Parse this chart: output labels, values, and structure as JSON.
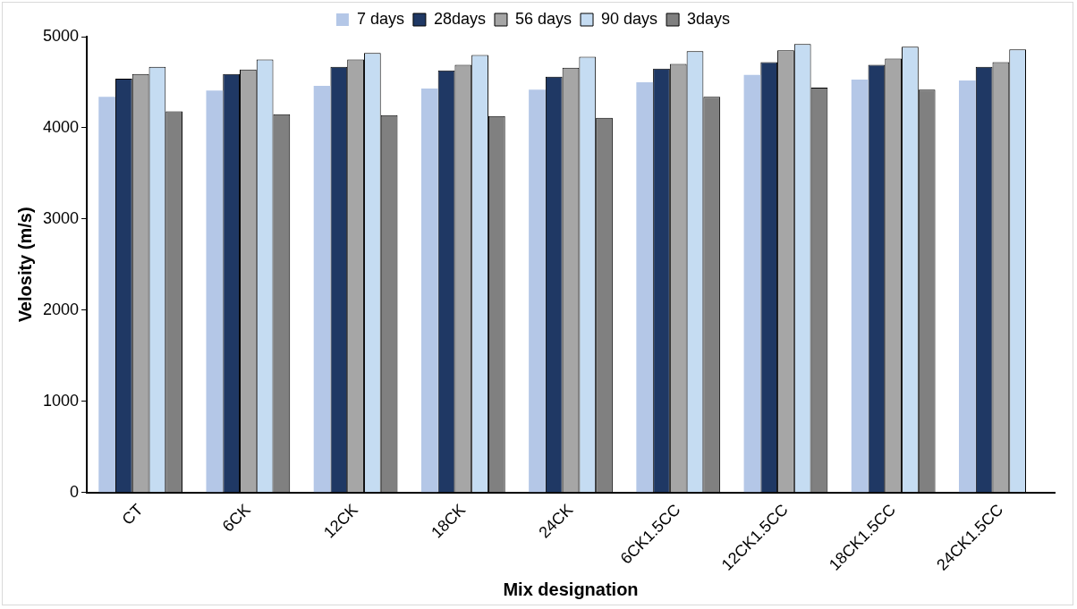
{
  "chart_data": {
    "type": "bar",
    "xlabel": "Mix designation",
    "ylabel": "Velosity (m/s)",
    "categories": [
      "CT",
      "6CK",
      "12CK",
      "18CK",
      "24CK",
      "6CK1.5CC",
      "12CK1.5CC",
      "18CK1.5CC",
      "24CK1.5CC"
    ],
    "series": [
      {
        "name": "7 days",
        "color": "#b4c7e7",
        "values": [
          4340,
          4410,
          4460,
          4430,
          4420,
          4500,
          4580,
          4530,
          4520
        ]
      },
      {
        "name": "28days",
        "color": "#1f3864",
        "values": [
          4540,
          4590,
          4670,
          4630,
          4560,
          4650,
          4720,
          4690,
          4670
        ]
      },
      {
        "name": "56 days",
        "color": "#a6a6a6",
        "values": [
          4590,
          4640,
          4750,
          4690,
          4660,
          4700,
          4850,
          4760,
          4720
        ]
      },
      {
        "name": "90 days",
        "color": "#c5dcf2",
        "values": [
          4670,
          4750,
          4820,
          4800,
          4780,
          4840,
          4920,
          4890,
          4860
        ]
      },
      {
        "name": "3days",
        "color": "#808080",
        "values": [
          4180,
          4150,
          4140,
          4130,
          4110,
          4340,
          4440,
          4420,
          null
        ]
      }
    ],
    "ylim": [
      0,
      5000
    ],
    "yticks": [
      0,
      1000,
      2000,
      3000,
      4000,
      5000
    ],
    "grid": false,
    "legend": "top"
  }
}
